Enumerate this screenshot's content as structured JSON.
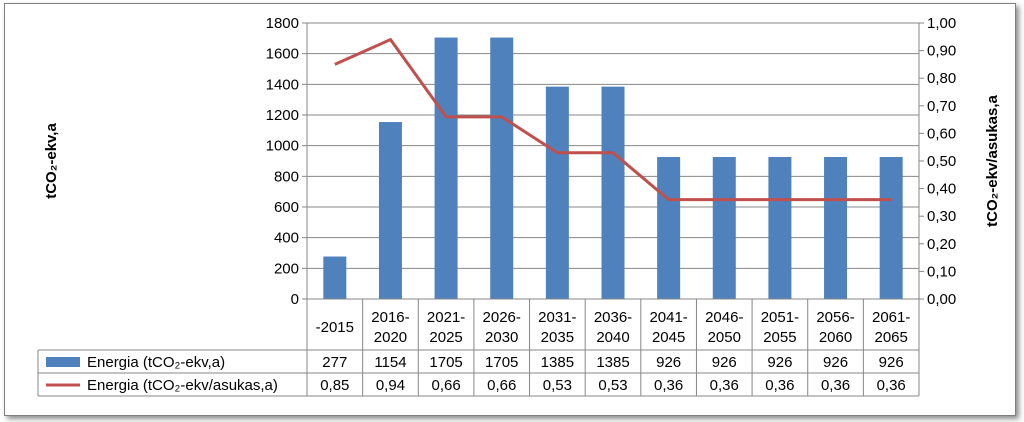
{
  "chart_data": {
    "type": "bar",
    "title": "",
    "xlabel": "",
    "ylabel": "tCO₂-ekv,a",
    "y2label": "tCO₂-ekv/asukas,a",
    "ylim": [
      0,
      1800
    ],
    "y_ticks": [
      "0",
      "200",
      "400",
      "600",
      "800",
      "1000",
      "1200",
      "1400",
      "1600",
      "1800"
    ],
    "y2lim": [
      0,
      1.0
    ],
    "y2_ticks": [
      "0,00",
      "0,10",
      "0,20",
      "0,30",
      "0,40",
      "0,50",
      "0,60",
      "0,70",
      "0,80",
      "0,90",
      "1,00"
    ],
    "grid": true,
    "legend": "data-table",
    "categories": [
      [
        "-2015"
      ],
      [
        "2016-",
        "2020"
      ],
      [
        "2021-",
        "2025"
      ],
      [
        "2026-",
        "2030"
      ],
      [
        "2031-",
        "2035"
      ],
      [
        "2036-",
        "2040"
      ],
      [
        "2041-",
        "2045"
      ],
      [
        "2046-",
        "2050"
      ],
      [
        "2051-",
        "2055"
      ],
      [
        "2056-",
        "2060"
      ],
      [
        "2061-",
        "2065"
      ]
    ],
    "series": [
      {
        "name": "Energia (tCO₂-ekv,a)",
        "type": "bar",
        "axis": "left",
        "color": "#4f81bd",
        "values": [
          277,
          1154,
          1705,
          1705,
          1385,
          1385,
          926,
          926,
          926,
          926,
          926
        ],
        "labels": [
          "277",
          "1154",
          "1705",
          "1705",
          "1385",
          "1385",
          "926",
          "926",
          "926",
          "926",
          "926"
        ]
      },
      {
        "name": "Energia (tCO₂-ekv/asukas,a)",
        "type": "line",
        "axis": "right",
        "color": "#c0504d",
        "values": [
          0.85,
          0.94,
          0.66,
          0.66,
          0.53,
          0.53,
          0.36,
          0.36,
          0.36,
          0.36,
          0.36
        ],
        "labels": [
          "0,85",
          "0,94",
          "0,66",
          "0,66",
          "0,53",
          "0,53",
          "0,36",
          "0,36",
          "0,36",
          "0,36",
          "0,36"
        ]
      }
    ]
  }
}
